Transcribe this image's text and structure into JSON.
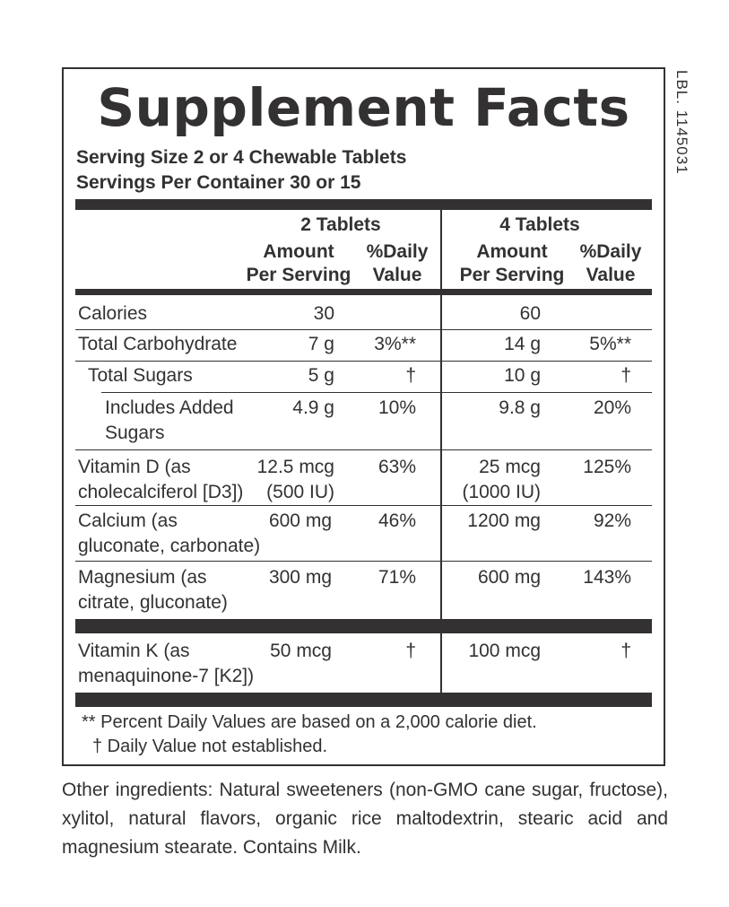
{
  "title": "Supplement Facts",
  "label_code": "LBL. 1145031",
  "serving_size": "Serving Size 2 or 4 Chewable Tablets",
  "servings_per_container": "Servings Per Container 30 or 15",
  "columns": {
    "group1": "2 Tablets",
    "group2": "4 Tablets",
    "amount_line1": "Amount",
    "amount_line2": "Per Serving",
    "dv_line1": "%Daily",
    "dv_line2": "Value"
  },
  "rows": {
    "calories": {
      "name": "Calories",
      "amt2": "30",
      "amt4": "60"
    },
    "carb": {
      "name": "Total Carbohydrate",
      "amt2": "7 g",
      "dv2": "3%**",
      "amt4": "14 g",
      "dv4": "5%**"
    },
    "sugars": {
      "name": "Total Sugars",
      "amt2": "5 g",
      "dv2": "†",
      "amt4": "10 g",
      "dv4": "†"
    },
    "added_sugars": {
      "name1": "Includes Added",
      "name2": "Sugars",
      "amt2": "4.9 g",
      "dv2": "10%",
      "amt4": "9.8 g",
      "dv4": "20%"
    },
    "vitd": {
      "name1": "Vitamin D (as",
      "name2": "cholecalciferol [D3])",
      "amt2a": "12.5 mcg",
      "amt2b": "(500 IU)",
      "dv2": "63%",
      "amt4a": "25 mcg",
      "amt4b": "(1000 IU)",
      "dv4": "125%"
    },
    "calcium": {
      "name1": "Calcium (as",
      "name2": "gluconate, carbonate)",
      "amt2": "600 mg",
      "dv2": "46%",
      "amt4": "1200 mg",
      "dv4": "92%"
    },
    "magnesium": {
      "name1": "Magnesium (as",
      "name2": "citrate, gluconate)",
      "amt2": "300 mg",
      "dv2": "71%",
      "amt4": "600 mg",
      "dv4": "143%"
    },
    "vitk": {
      "name1": "Vitamin K (as",
      "name2": "menaquinone-7 [K2])",
      "amt2": "50 mcg",
      "dv2": "†",
      "amt4": "100 mcg",
      "dv4": "†"
    }
  },
  "footnotes": {
    "percent_dv": "** Percent Daily Values are based on a 2,000 calorie diet.",
    "dagger": "† Daily Value not established."
  },
  "other_ingredients": "Other ingredients: Natural sweeteners (non-GMO cane sugar, fructose), xylitol, natural flavors, organic rice maltodextrin, stearic acid and magnesium stearate. Contains Milk."
}
